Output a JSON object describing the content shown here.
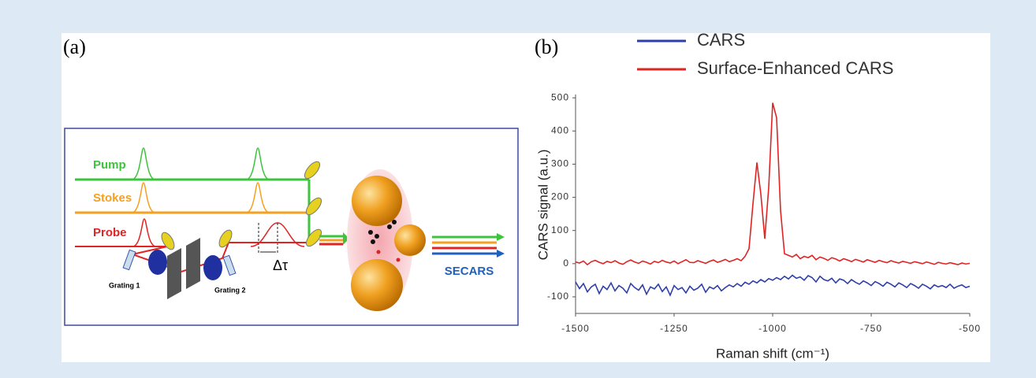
{
  "panel_a": {
    "label": "(a)",
    "pump": "Pump",
    "stokes": "Stokes",
    "probe": "Probe",
    "grating_1": "Grating 1",
    "grating_2": "Grating 2",
    "delay": "Δτ",
    "output": "SECARS"
  },
  "chart_data": {
    "type": "line",
    "panel_label": "(b)",
    "xlabel": "Raman shift (cm⁻¹)",
    "ylabel": "CARS signal (a.u.)",
    "xlim": [
      -1500,
      -500
    ],
    "xticks": [
      -1500,
      -1250,
      -1000,
      -750,
      -500
    ],
    "ylim": [
      -150,
      510
    ],
    "yticks": [
      -100,
      0,
      100,
      200,
      300,
      400,
      500
    ],
    "x": [
      -1500,
      -1490,
      -1480,
      -1470,
      -1460,
      -1450,
      -1440,
      -1430,
      -1420,
      -1410,
      -1400,
      -1390,
      -1380,
      -1370,
      -1360,
      -1350,
      -1340,
      -1330,
      -1320,
      -1310,
      -1300,
      -1290,
      -1280,
      -1270,
      -1260,
      -1250,
      -1240,
      -1230,
      -1220,
      -1210,
      -1200,
      -1190,
      -1180,
      -1170,
      -1160,
      -1150,
      -1140,
      -1130,
      -1120,
      -1110,
      -1100,
      -1090,
      -1080,
      -1070,
      -1060,
      -1050,
      -1040,
      -1030,
      -1020,
      -1010,
      -1000,
      -990,
      -980,
      -970,
      -960,
      -950,
      -940,
      -930,
      -920,
      -910,
      -900,
      -890,
      -880,
      -870,
      -860,
      -850,
      -840,
      -830,
      -820,
      -810,
      -800,
      -790,
      -780,
      -770,
      -760,
      -750,
      -740,
      -730,
      -720,
      -710,
      -700,
      -690,
      -680,
      -670,
      -660,
      -650,
      -640,
      -630,
      -620,
      -610,
      -600,
      -590,
      -580,
      -570,
      -560,
      -550,
      -540,
      -530,
      -520,
      -510,
      -500
    ],
    "series": [
      {
        "name": "CARS",
        "color": "#2e3fa8",
        "values": [
          -55,
          -75,
          -60,
          -85,
          -70,
          -62,
          -90,
          -68,
          -78,
          -58,
          -82,
          -66,
          -74,
          -88,
          -60,
          -72,
          -80,
          -64,
          -92,
          -70,
          -76,
          -62,
          -84,
          -70,
          -95,
          -66,
          -78,
          -72,
          -88,
          -68,
          -80,
          -74,
          -62,
          -86,
          -70,
          -76,
          -66,
          -82,
          -72,
          -64,
          -70,
          -60,
          -68,
          -56,
          -62,
          -52,
          -58,
          -48,
          -55,
          -45,
          -50,
          -42,
          -48,
          -38,
          -46,
          -35,
          -44,
          -40,
          -50,
          -36,
          -42,
          -55,
          -38,
          -48,
          -52,
          -44,
          -58,
          -46,
          -50,
          -60,
          -48,
          -56,
          -62,
          -52,
          -58,
          -66,
          -54,
          -60,
          -68,
          -56,
          -62,
          -70,
          -58,
          -64,
          -72,
          -60,
          -66,
          -74,
          -62,
          -68,
          -76,
          -64,
          -70,
          -66,
          -72,
          -62,
          -74,
          -68,
          -64,
          -72,
          -68
        ]
      },
      {
        "name": "Surface-Enhanced CARS",
        "color": "#e02424",
        "values": [
          5,
          2,
          8,
          -3,
          6,
          10,
          4,
          0,
          7,
          3,
          9,
          2,
          -2,
          6,
          11,
          5,
          1,
          8,
          4,
          -1,
          7,
          3,
          10,
          5,
          2,
          8,
          0,
          6,
          12,
          4,
          3,
          9,
          5,
          1,
          7,
          11,
          4,
          8,
          13,
          6,
          10,
          15,
          9,
          22,
          45,
          180,
          305,
          210,
          75,
          230,
          485,
          440,
          160,
          30,
          25,
          20,
          28,
          15,
          22,
          18,
          25,
          12,
          20,
          16,
          10,
          18,
          14,
          8,
          15,
          11,
          6,
          13,
          9,
          5,
          12,
          8,
          4,
          10,
          6,
          3,
          9,
          5,
          2,
          7,
          4,
          1,
          6,
          3,
          0,
          5,
          2,
          -2,
          4,
          1,
          -1,
          3,
          0,
          -3,
          2,
          -1,
          1
        ]
      }
    ]
  }
}
